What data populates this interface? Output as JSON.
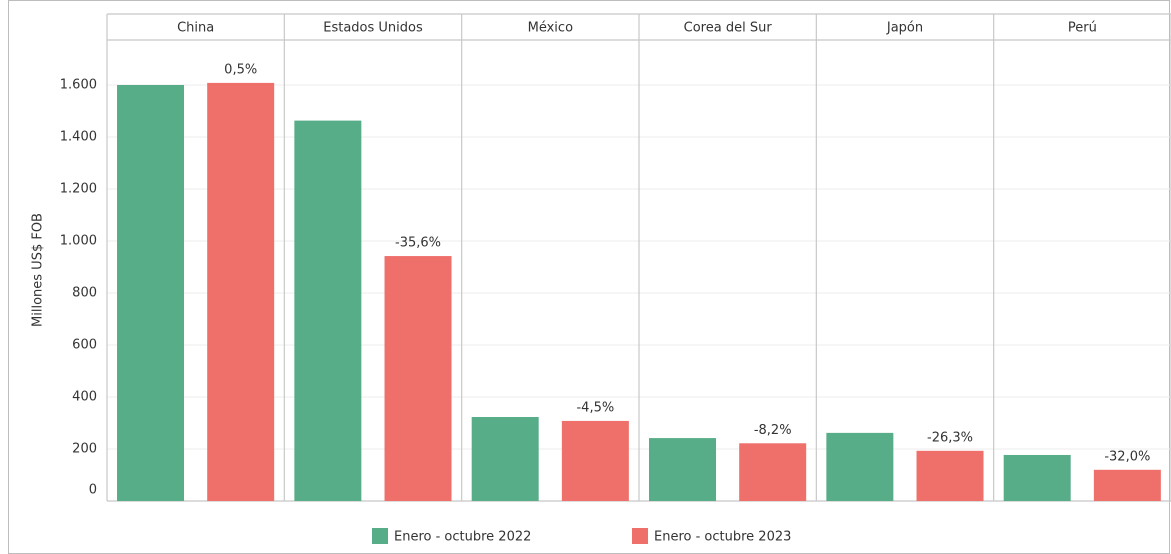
{
  "chart_data": {
    "type": "bar",
    "y_label": "Millones US$ FOB",
    "categories": [
      "China",
      "Estados Unidos",
      "México",
      "Corea del Sur",
      "Japón",
      "Perú"
    ],
    "series": [
      {
        "name": "Enero - octubre 2022",
        "color": "#57ad88",
        "values": [
          1600,
          1463,
          323,
          242,
          262,
          177
        ]
      },
      {
        "name": "Enero - octubre 2023",
        "color": "#ef6f6a",
        "values": [
          1608,
          942,
          308,
          222,
          193,
          120
        ]
      }
    ],
    "annotations": [
      "0,5%",
      "-35,6%",
      "-4,5%",
      "-8,2%",
      "-26,3%",
      "-32,0%"
    ],
    "ylim": [
      0,
      1773
    ],
    "yticks": [
      0,
      200,
      400,
      600,
      800,
      {
        "value": 1000,
        "label": "1.000"
      },
      {
        "value": 1200,
        "label": "1.200"
      },
      {
        "value": 1400,
        "label": "1.400"
      },
      {
        "value": 1600,
        "label": "1.600"
      }
    ],
    "grid": true
  }
}
